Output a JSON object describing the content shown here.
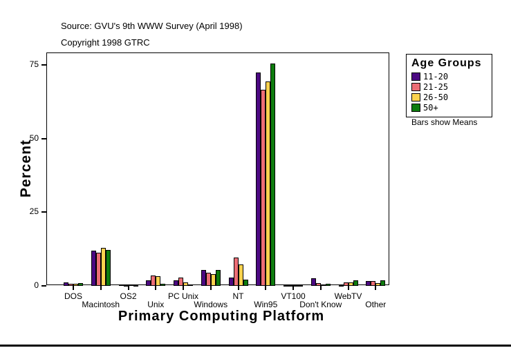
{
  "header": {
    "source": "Source: GVU's 9th WWW Survey (April 1998)",
    "copyright": "Copyright 1998 GTRC"
  },
  "chart_data": {
    "type": "bar",
    "title": "",
    "xlabel": "Primary Computing Platform",
    "ylabel": "Percent",
    "ylim": [
      0,
      79
    ],
    "yticks": [
      0,
      25,
      50,
      75
    ],
    "grid": false,
    "legend_position": "right",
    "legend_title": "Age Groups",
    "legend_note": "Bars show Means",
    "categories": [
      "DOS",
      "Macintosh",
      "OS2",
      "Unix",
      "PC Unix",
      "Windows",
      "NT",
      "Win95",
      "VT100",
      "Don't Know",
      "WebTV",
      "Other"
    ],
    "series": [
      {
        "name": "11-20",
        "color": "#4B0982",
        "values": [
          1.2,
          12.0,
          0.4,
          1.8,
          1.9,
          5.3,
          2.9,
          72.5,
          0.1,
          2.5,
          0.2,
          1.6
        ]
      },
      {
        "name": "21-25",
        "color": "#EC6D75",
        "values": [
          0.6,
          11.3,
          0.3,
          3.4,
          2.9,
          4.4,
          9.5,
          66.5,
          0.2,
          1.0,
          1.2,
          1.6
        ]
      },
      {
        "name": "26-50",
        "color": "#FBD24E",
        "values": [
          0.7,
          13.0,
          0.4,
          3.3,
          1.1,
          4.0,
          7.2,
          69.5,
          0.3,
          0.4,
          1.2,
          1.0
        ]
      },
      {
        "name": "50+",
        "color": "#0E7C0E",
        "values": [
          0.9,
          12.2,
          0.2,
          0.8,
          0.5,
          5.5,
          2.2,
          75.5,
          0.3,
          0.7,
          1.9,
          1.9
        ]
      }
    ]
  }
}
